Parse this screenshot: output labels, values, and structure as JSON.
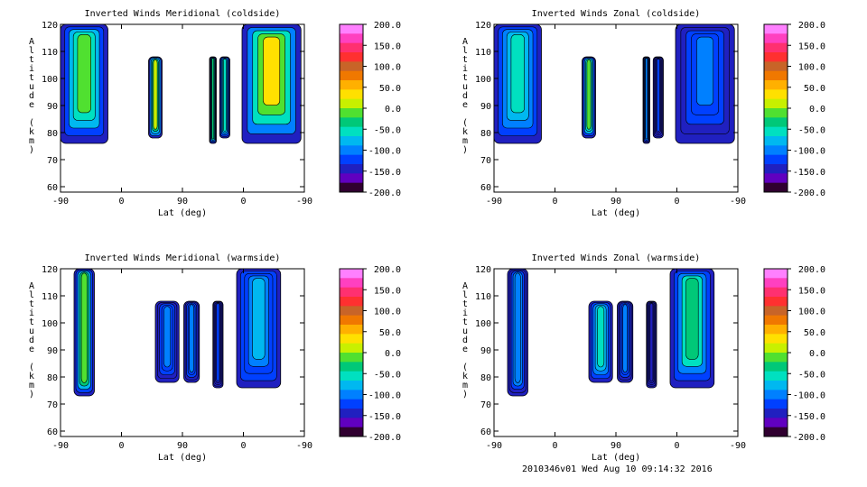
{
  "colorbar": {
    "ticks": [
      "200.0",
      "150.0",
      "100.0",
      "50.0",
      "0.0",
      "-50.0",
      "-100.0",
      "-150.0",
      "-200.0"
    ],
    "colors": [
      "#ff80ff",
      "#ff40c0",
      "#ff3070",
      "#ff3030",
      "#c86428",
      "#f07800",
      "#ffb000",
      "#ffe000",
      "#c8f000",
      "#50e030",
      "#00c878",
      "#00e0c0",
      "#00b8f0",
      "#0080ff",
      "#0040ff",
      "#2020c0",
      "#6000c0",
      "#300030"
    ]
  },
  "footer": "2010346v01 Wed Aug 10 09:14:32 2016",
  "chart_data": [
    {
      "type": "heatmap",
      "title": "Inverted Winds Meridional (coldside)",
      "xlabel": "Lat (deg)",
      "ylabel": "Altitude (km)",
      "xticks": [
        "-90",
        "0",
        "90",
        "0",
        "-90"
      ],
      "yticks": [
        "60",
        "70",
        "80",
        "90",
        "100",
        "110",
        "120"
      ],
      "ylim": [
        58,
        120
      ],
      "colorbar_range": [
        -200,
        200
      ],
      "bands": [
        {
          "lat_range": [
            -90,
            -20
          ],
          "alt_range": [
            76,
            120
          ],
          "mean_wind": -20
        },
        {
          "lat_range": [
            40,
            60
          ],
          "alt_range": [
            78,
            108
          ],
          "mean_wind": 10
        },
        {
          "lat_range": [
            130,
            140
          ],
          "alt_range": [
            76,
            108
          ],
          "mean_wind": -30
        },
        {
          "lat_range": [
            145,
            160
          ],
          "alt_range": [
            78,
            108
          ],
          "mean_wind": -60
        },
        {
          "lat_range": [
            178,
            265
          ],
          "alt_range": [
            76,
            120
          ],
          "mean_wind": 30
        }
      ]
    },
    {
      "type": "heatmap",
      "title": "Inverted Winds Zonal (coldside)",
      "xlabel": "Lat (deg)",
      "ylabel": "Altitude (km)",
      "xticks": [
        "-90",
        "0",
        "90",
        "0",
        "-90"
      ],
      "yticks": [
        "60",
        "70",
        "80",
        "90",
        "100",
        "110",
        "120"
      ],
      "ylim": [
        58,
        120
      ],
      "colorbar_range": [
        -200,
        200
      ],
      "bands": [
        {
          "lat_range": [
            -90,
            -20
          ],
          "alt_range": [
            76,
            120
          ],
          "mean_wind": -60
        },
        {
          "lat_range": [
            40,
            60
          ],
          "alt_range": [
            78,
            108
          ],
          "mean_wind": -20
        },
        {
          "lat_range": [
            130,
            140
          ],
          "alt_range": [
            76,
            108
          ],
          "mean_wind": -90
        },
        {
          "lat_range": [
            145,
            160
          ],
          "alt_range": [
            78,
            108
          ],
          "mean_wind": -130
        },
        {
          "lat_range": [
            178,
            265
          ],
          "alt_range": [
            76,
            120
          ],
          "mean_wind": -110
        }
      ]
    },
    {
      "type": "heatmap",
      "title": "Inverted Winds Meridional (warmside)",
      "xlabel": "Lat (deg)",
      "ylabel": "Altitude (km)",
      "xticks": [
        "-90",
        "0",
        "90",
        "0",
        "-90"
      ],
      "yticks": [
        "60",
        "70",
        "80",
        "90",
        "100",
        "110",
        "120"
      ],
      "ylim": [
        58,
        120
      ],
      "colorbar_range": [
        -200,
        200
      ],
      "bands": [
        {
          "lat_range": [
            -70,
            -40
          ],
          "alt_range": [
            73,
            120
          ],
          "mean_wind": 0
        },
        {
          "lat_range": [
            50,
            85
          ],
          "alt_range": [
            78,
            108
          ],
          "mean_wind": -110
        },
        {
          "lat_range": [
            92,
            115
          ],
          "alt_range": [
            78,
            108
          ],
          "mean_wind": -100
        },
        {
          "lat_range": [
            135,
            150
          ],
          "alt_range": [
            76,
            108
          ],
          "mean_wind": -130
        },
        {
          "lat_range": [
            170,
            235
          ],
          "alt_range": [
            76,
            120
          ],
          "mean_wind": -80
        }
      ]
    },
    {
      "type": "heatmap",
      "title": "Inverted Winds Zonal (warmside)",
      "xlabel": "Lat (deg)",
      "ylabel": "Altitude (km)",
      "xticks": [
        "-90",
        "0",
        "90",
        "0",
        "-90"
      ],
      "yticks": [
        "60",
        "70",
        "80",
        "90",
        "100",
        "110",
        "120"
      ],
      "ylim": [
        58,
        120
      ],
      "colorbar_range": [
        -200,
        200
      ],
      "bands": [
        {
          "lat_range": [
            -70,
            -40
          ],
          "alt_range": [
            73,
            120
          ],
          "mean_wind": -90
        },
        {
          "lat_range": [
            50,
            85
          ],
          "alt_range": [
            78,
            108
          ],
          "mean_wind": -60
        },
        {
          "lat_range": [
            92,
            115
          ],
          "alt_range": [
            78,
            108
          ],
          "mean_wind": -110
        },
        {
          "lat_range": [
            135,
            150
          ],
          "alt_range": [
            76,
            108
          ],
          "mean_wind": -140
        },
        {
          "lat_range": [
            170,
            235
          ],
          "alt_range": [
            76,
            120
          ],
          "mean_wind": -30
        }
      ]
    }
  ]
}
